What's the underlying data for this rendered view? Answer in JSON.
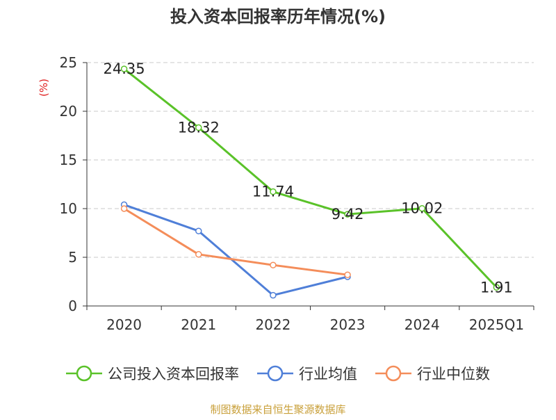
{
  "chart_data": {
    "type": "line",
    "title": "投入资本回报率历年情况(%)",
    "ylabel": "(%)",
    "xlabel": "",
    "categories": [
      "2020",
      "2021",
      "2022",
      "2023",
      "2024",
      "2025Q1"
    ],
    "ylim": [
      0,
      25
    ],
    "yticks": [
      0,
      5,
      10,
      15,
      20,
      25
    ],
    "grid": true,
    "legend_position": "bottom",
    "series": [
      {
        "name": "公司投入资本回报率",
        "color": "#5ac229",
        "values": [
          24.35,
          18.32,
          11.74,
          9.42,
          10.02,
          1.91
        ],
        "labels": [
          "24.35",
          "18.32",
          "11.74",
          "9.42",
          "10.02",
          "1.91"
        ]
      },
      {
        "name": "行业均值",
        "color": "#4f7fd8",
        "values": [
          10.4,
          7.7,
          1.1,
          3.0,
          null,
          null
        ]
      },
      {
        "name": "行业中位数",
        "color": "#f48d5a",
        "values": [
          10.0,
          5.3,
          4.2,
          3.2,
          null,
          null
        ]
      }
    ],
    "source": "制图数据来自恒生聚源数据库"
  },
  "colors": {
    "axis": "#333333",
    "grid": "#c8c8c8",
    "ylabel": "#e02020",
    "source": "#c9a03a",
    "title": "#333333"
  }
}
